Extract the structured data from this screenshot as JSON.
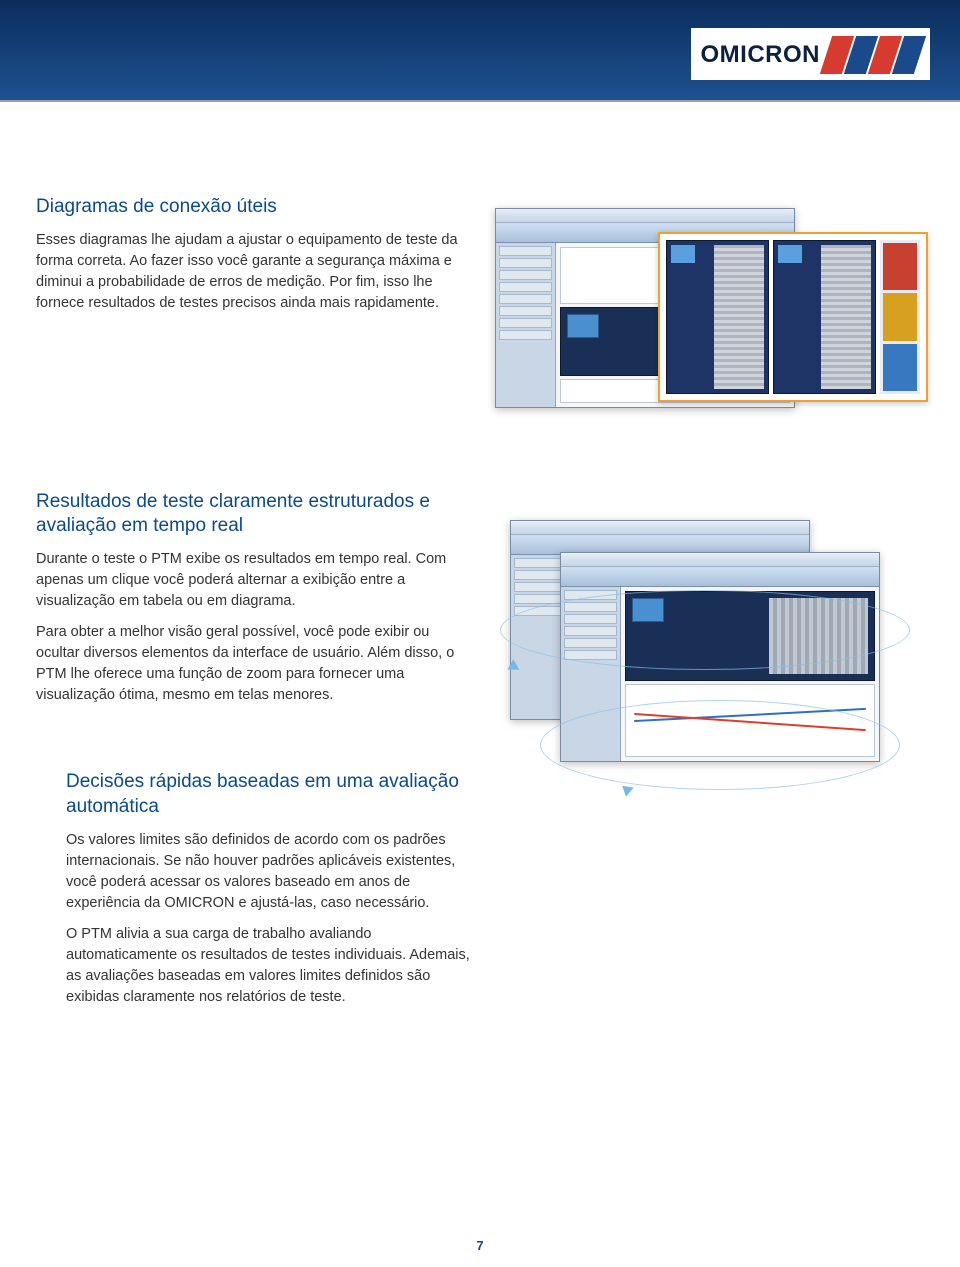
{
  "brand": {
    "name": "OMICRON"
  },
  "colors": {
    "heading": "#0a4a8c",
    "body_text": "#333333",
    "header_gradient_top": "#0a2d5c",
    "header_gradient_bottom": "#1e5190",
    "callout_border": "#f0a030",
    "arrow_ellipse": "#78b8e8",
    "logo_red": "#d73a2f",
    "logo_blue": "#1a4a8a"
  },
  "typography": {
    "title_fontsize_pt": 14,
    "body_fontsize_pt": 11,
    "title_weight": 400,
    "body_weight": 400
  },
  "sections": [
    {
      "title": "Diagramas de conexão úteis",
      "paragraphs": [
        "Esses diagramas lhe ajudam a ajustar o equipamento de teste da forma correta. Ao fazer isso você garante a segurança máxima e diminui a probabilidade de erros de medição. Por fim, isso lhe fornece resultados de testes precisos ainda mais rapidamente."
      ]
    },
    {
      "title": "Resultados de teste claramente estruturados e avaliação em tempo real",
      "paragraphs": [
        "Durante o teste o PTM exibe os resultados em tempo real. Com apenas um clique você poderá alternar a exibição entre a visualização em tabela ou em diagrama.",
        "Para obter a melhor visão geral possível, você pode exibir ou ocultar diversos elementos da interface de usuário. Além disso, o PTM lhe oferece uma função de zoom para fornecer uma visualização ótima, mesmo em telas menores."
      ]
    },
    {
      "title": "Decisões rápidas baseadas em uma avaliação automática",
      "paragraphs": [
        "Os valores limites são definidos de acordo com os padrões internacionais. Se não houver padrões aplicáveis existentes, você poderá acessar os valores baseado em anos de experiência da OMICRON e ajustá-las, caso necessário.",
        "O PTM alivia a sua carga de trabalho avaliando automaticamente os resultados de testes individuais. Ademais, as avaliações baseadas em valores limites definidos são exibidas claramente nos relatórios de teste."
      ]
    }
  ],
  "page_number": "7",
  "screenshots": {
    "shot1": {
      "type": "app-window",
      "has_callout": true
    },
    "shot2": {
      "type": "app-window-stack",
      "has_chart": true,
      "has_zoom_arrows": true
    }
  }
}
